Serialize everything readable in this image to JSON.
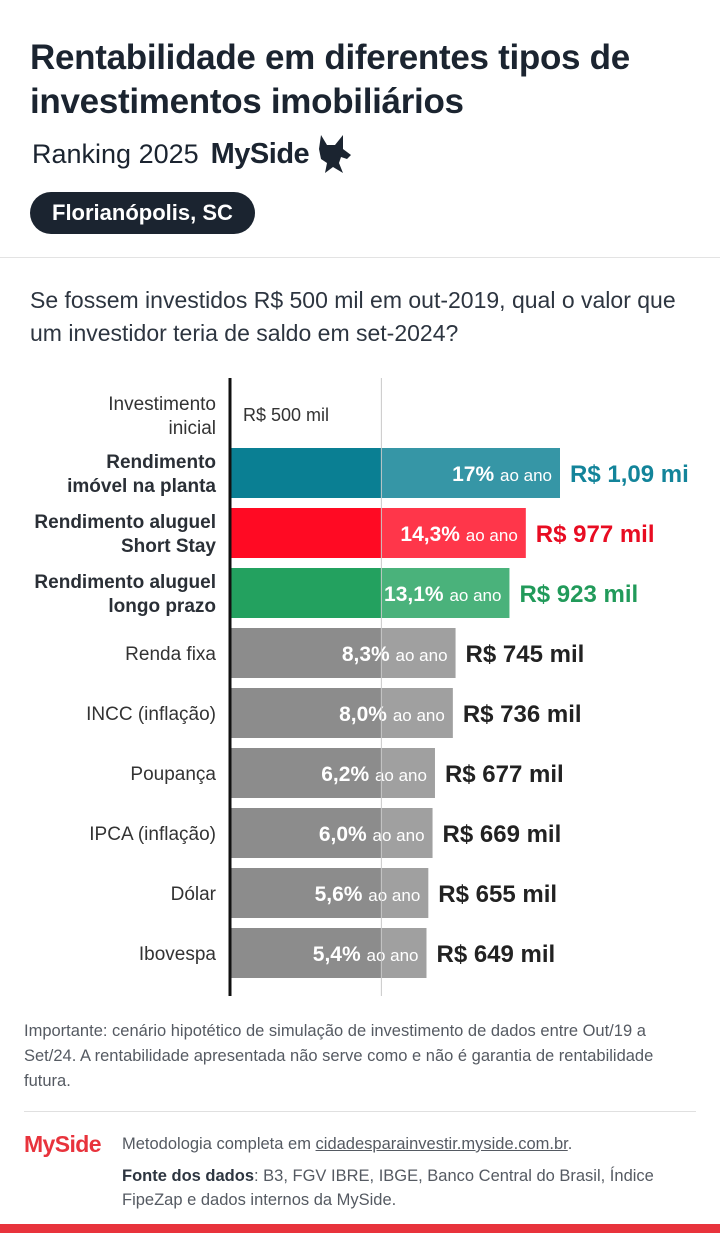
{
  "header": {
    "title": "Rentabilidade em diferentes tipos de investimentos imobiliários",
    "subtitle": "Ranking 2025",
    "brand": "MySide",
    "city": "Florianópolis, SC"
  },
  "question": "Se fossem investidos R$ 500 mil em out-2019, qual o valor que um investidor teria de saldo em set-2024?",
  "chart_data": {
    "type": "bar",
    "orientation": "horizontal",
    "value_unit": "R$",
    "initial": {
      "label": [
        "Investimento",
        "inicial"
      ],
      "value": 500000,
      "value_label": "R$ 500 mil"
    },
    "per_year_suffix": "ao ano",
    "xlim": [
      0,
      1090000
    ],
    "bars": [
      {
        "label": [
          "Rendimento",
          "imóvel na planta"
        ],
        "bold": true,
        "rate": "17%",
        "value": 1090000,
        "value_label": "R$ 1,09 mi",
        "color": "#0a7f93",
        "label_color": "#13849a"
      },
      {
        "label": [
          "Rendimento aluguel",
          "Short Stay"
        ],
        "bold": true,
        "rate": "14,3%",
        "value": 977000,
        "value_label": "R$ 977 mil",
        "color": "#ff0a23",
        "label_color": "#e80c22"
      },
      {
        "label": [
          "Rendimento aluguel",
          "longo prazo"
        ],
        "bold": true,
        "rate": "13,1%",
        "value": 923000,
        "value_label": "R$ 923 mil",
        "color": "#23a15f",
        "label_color": "#219a5a"
      },
      {
        "label": [
          "Renda fixa"
        ],
        "bold": false,
        "rate": "8,3%",
        "value": 745000,
        "value_label": "R$ 745 mil",
        "color": "#8c8c8c",
        "label_color": "#222222"
      },
      {
        "label": [
          "INCC (inflação)"
        ],
        "bold": false,
        "rate": "8,0%",
        "value": 736000,
        "value_label": "R$ 736 mil",
        "color": "#8c8c8c",
        "label_color": "#222222"
      },
      {
        "label": [
          "Poupança"
        ],
        "bold": false,
        "rate": "6,2%",
        "value": 677000,
        "value_label": "R$ 677 mil",
        "color": "#8c8c8c",
        "label_color": "#222222"
      },
      {
        "label": [
          "IPCA (inflação)"
        ],
        "bold": false,
        "rate": "6,0%",
        "value": 669000,
        "value_label": "R$ 669 mil",
        "color": "#8c8c8c",
        "label_color": "#222222"
      },
      {
        "label": [
          "Dólar"
        ],
        "bold": false,
        "rate": "5,6%",
        "value": 655000,
        "value_label": "R$ 655 mil",
        "color": "#8c8c8c",
        "label_color": "#222222"
      },
      {
        "label": [
          "Ibovespa"
        ],
        "bold": false,
        "rate": "5,4%",
        "value": 649000,
        "value_label": "R$ 649 mil",
        "color": "#8c8c8c",
        "label_color": "#222222"
      }
    ]
  },
  "note": "Importante: cenário hipotético de simulação de investimento de dados entre Out/19 a Set/24. A rentabilidade apresentada não serve como e não é garantia de rentabilidade futura.",
  "footer": {
    "logo": "MySide",
    "methodology_prefix": "Metodologia completa em ",
    "methodology_link": "cidadesparainvestir.myside.com.br",
    "methodology_suffix": ".",
    "source_label": "Fonte dos dados",
    "source_text": ": B3, FGV IBRE, IBGE, Banco Central do Brasil, Índice FipeZap e dados internos da MySide."
  },
  "colors": {
    "brand_red": "#e8333c",
    "dark": "#1b2430"
  }
}
